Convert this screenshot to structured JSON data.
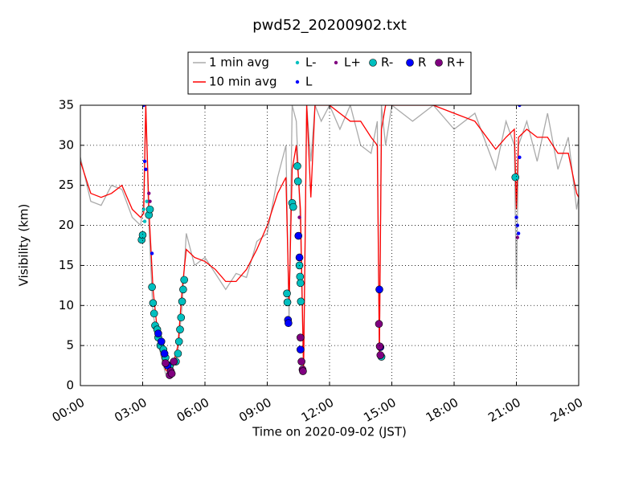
{
  "chart_data": {
    "type": "line",
    "title": "pwd52_20200902.txt",
    "x_label": "Time on 2020-09-02 (JST)",
    "y_label": "Visibility (km)",
    "xlim": [
      0,
      24
    ],
    "ylim": [
      0,
      35
    ],
    "xticks": [
      {
        "value": 0,
        "label": "00:00"
      },
      {
        "value": 3,
        "label": "03:00"
      },
      {
        "value": 6,
        "label": "06:00"
      },
      {
        "value": 9,
        "label": "09:00"
      },
      {
        "value": 12,
        "label": "12:00"
      },
      {
        "value": 15,
        "label": "15:00"
      },
      {
        "value": 18,
        "label": "18:00"
      },
      {
        "value": 21,
        "label": "21:00"
      },
      {
        "value": 24,
        "label": "24:00"
      }
    ],
    "yticks": [
      0,
      5,
      10,
      15,
      20,
      25,
      30,
      35
    ],
    "grid": true,
    "legend": "top",
    "x": [
      0,
      0.5,
      1,
      1.5,
      2,
      2.5,
      2.9,
      3.05,
      3.15,
      3.3,
      3.5,
      3.7,
      3.9,
      4.1,
      4.3,
      4.5,
      4.7,
      4.9,
      5.1,
      5.5,
      6,
      6.5,
      7,
      7.5,
      8,
      8.5,
      9,
      9.5,
      9.9,
      10.05,
      10.2,
      10.4,
      10.6,
      10.75,
      10.9,
      11.1,
      11.3,
      11.6,
      12,
      12.5,
      13,
      13.5,
      14,
      14.3,
      14.4,
      14.5,
      14.7,
      15,
      16,
      17,
      18,
      19,
      20,
      20.5,
      20.9,
      21,
      21.1,
      21.5,
      22,
      22.5,
      23,
      23.5,
      23.9,
      24
    ],
    "series": [
      {
        "name": "1 min avg",
        "type": "line",
        "color": "#aaaaaa",
        "values": [
          28.5,
          23,
          22.5,
          25,
          24.5,
          21,
          20,
          23,
          35,
          20,
          9,
          6,
          3.5,
          1.5,
          1,
          2.5,
          4,
          10,
          19,
          15,
          16,
          14,
          12,
          14,
          13.5,
          18,
          19,
          26,
          30,
          8,
          35,
          33,
          20,
          1.5,
          35,
          28,
          35,
          33,
          35,
          32,
          35,
          30,
          29,
          33,
          3.5,
          35,
          30,
          35,
          33,
          35,
          32,
          34,
          27,
          33,
          30,
          12,
          30,
          33,
          28,
          34,
          27,
          31,
          22,
          23.5
        ]
      },
      {
        "name": "10 min avg",
        "type": "line",
        "color": "#ff0000",
        "values": [
          28,
          24,
          23.5,
          24,
          25,
          22,
          21,
          21.5,
          35,
          22,
          12,
          7,
          4,
          2,
          1.5,
          3,
          5,
          12,
          17,
          16,
          15.5,
          14.5,
          13,
          13,
          14.5,
          17,
          20,
          24,
          26,
          10,
          27,
          30,
          22,
          2,
          35,
          23.5,
          35,
          35,
          35,
          34,
          33,
          33,
          31,
          30,
          4,
          32,
          35,
          35,
          35,
          35,
          34,
          33,
          29.5,
          31,
          32,
          22,
          31,
          32,
          31,
          31,
          29,
          29,
          24,
          23.5
        ]
      },
      {
        "name": "L-",
        "type": "scatter",
        "marker": "small",
        "color": "#00bfbf",
        "x": [
          3.05,
          3.1,
          3.2
        ],
        "values": [
          22,
          20.5,
          23
        ]
      },
      {
        "name": "L",
        "type": "scatter",
        "marker": "small",
        "color": "#0000ff",
        "x": [
          3.05,
          3.1,
          3.15,
          3.45,
          21.0,
          21.05,
          21.1,
          21.15,
          21.15
        ],
        "values": [
          35,
          28,
          27,
          16.5,
          21,
          20,
          19,
          28.5,
          35
        ]
      },
      {
        "name": "L+",
        "type": "scatter",
        "marker": "small",
        "color": "#800080",
        "x": [
          3.3,
          3.35,
          10.55,
          21.05
        ],
        "values": [
          24,
          23,
          21,
          18.5
        ]
      },
      {
        "name": "R-",
        "type": "scatter",
        "marker": "large",
        "color": "#00bfbf",
        "x": [
          2.95,
          3.0,
          3.3,
          3.35,
          3.45,
          3.5,
          3.55,
          3.6,
          3.7,
          3.75,
          3.85,
          4.0,
          4.1,
          4.3,
          4.6,
          4.7,
          4.75,
          4.8,
          4.85,
          4.9,
          4.95,
          5.0,
          9.95,
          9.97,
          10.2,
          10.25,
          10.45,
          10.48,
          10.55,
          10.58,
          10.6,
          10.62,
          14.5,
          20.95
        ],
        "values": [
          18.2,
          18.8,
          21.3,
          22,
          12.3,
          10.3,
          9,
          7.5,
          7,
          6,
          5,
          4.5,
          3.5,
          2.5,
          3,
          4,
          5.5,
          7,
          8.5,
          10.5,
          12,
          13.2,
          11.5,
          10.4,
          22.8,
          22.3,
          27.4,
          25.5,
          15,
          13.6,
          12.8,
          10.5,
          3.6,
          26
        ]
      },
      {
        "name": "R",
        "type": "scatter",
        "marker": "large",
        "color": "#0000ff",
        "x": [
          3.75,
          3.9,
          4.05,
          4.2,
          10.0,
          10.02,
          10.5,
          10.55,
          10.6,
          14.4,
          14.45
        ],
        "values": [
          6.5,
          5.5,
          4,
          2.5,
          8.2,
          7.8,
          18.7,
          16,
          4.5,
          12,
          4.8
        ]
      },
      {
        "name": "R+",
        "type": "scatter",
        "marker": "large",
        "color": "#800080",
        "x": [
          4.1,
          4.3,
          4.35,
          4.4,
          4.5,
          10.6,
          10.65,
          10.7,
          10.72,
          14.38,
          14.42,
          14.45
        ],
        "values": [
          2.8,
          1.3,
          1.8,
          1.5,
          3,
          6,
          3,
          2,
          1.8,
          7.7,
          4.9,
          3.8
        ]
      }
    ]
  }
}
